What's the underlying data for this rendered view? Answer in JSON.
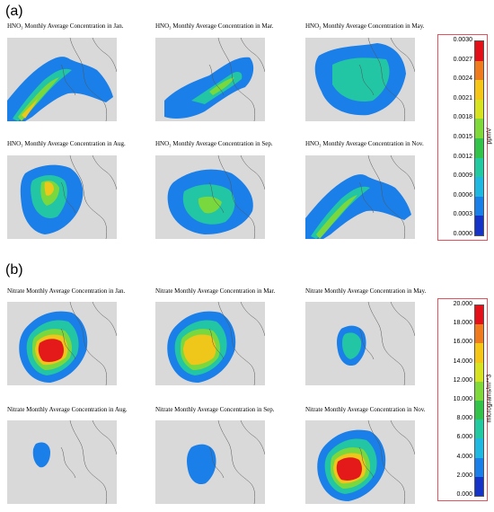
{
  "panels": [
    {
      "letter": "(a)",
      "maps": [
        {
          "title": "HNO₃ Monthly Average Concentration in Jan.",
          "hotspot": "coast-sw-band",
          "intensity": 0.85
        },
        {
          "title": "HNO₃ Monthly Average Concentration in Mar.",
          "hotspot": "band-east",
          "intensity": 0.55
        },
        {
          "title": "HNO₃ Monthly Average Concentration in May.",
          "hotspot": "broad-north",
          "intensity": 0.45
        },
        {
          "title": "HNO₃ Monthly Average Concentration in Aug.",
          "hotspot": "north-core",
          "intensity": 0.7
        },
        {
          "title": "HNO₃ Monthly Average Concentration in Sep.",
          "hotspot": "broad-center",
          "intensity": 0.5
        },
        {
          "title": "HNO₃ Monthly Average Concentration in Nov.",
          "hotspot": "coast-sw-band",
          "intensity": 0.6
        }
      ],
      "colorbar": {
        "unit": "ppmV",
        "ticks": [
          "0.0030",
          "0.0027",
          "0.0024",
          "0.0021",
          "0.0018",
          "0.0015",
          "0.0012",
          "0.0009",
          "0.0006",
          "0.0003",
          "0.0000"
        ],
        "colors": [
          "#e3101a",
          "#f07a1e",
          "#f5c518",
          "#d7e320",
          "#7fd93a",
          "#33c24a",
          "#23c9a0",
          "#20b8e0",
          "#1a7fe8",
          "#1633c8",
          "#dcdcdc"
        ]
      }
    },
    {
      "letter": "(b)",
      "maps": [
        {
          "title": "Nitrate Monthly Average Concentration in Jan.",
          "hotspot": "big-core",
          "intensity": 1.0
        },
        {
          "title": "Nitrate Monthly Average Concentration in Mar.",
          "hotspot": "big-core",
          "intensity": 0.85
        },
        {
          "title": "Nitrate Monthly Average Concentration in May.",
          "hotspot": "small-blob",
          "intensity": 0.3
        },
        {
          "title": "Nitrate Monthly Average Concentration in Aug.",
          "hotspot": "tiny-blob",
          "intensity": 0.2
        },
        {
          "title": "Nitrate Monthly Average Concentration in Sep.",
          "hotspot": "small-blob",
          "intensity": 0.25
        },
        {
          "title": "Nitrate Monthly Average Concentration in Nov.",
          "hotspot": "big-core",
          "intensity": 0.95
        }
      ],
      "colorbar": {
        "unit": "micrograms/m**3",
        "ticks": [
          "20.000",
          "18.000",
          "16.000",
          "14.000",
          "12.000",
          "10.000",
          "8.000",
          "6.000",
          "4.000",
          "2.000",
          "0.000"
        ],
        "colors": [
          "#e3101a",
          "#f07a1e",
          "#f5c518",
          "#d7e320",
          "#7fd93a",
          "#33c24a",
          "#23c9a0",
          "#20b8e0",
          "#1a7fe8",
          "#1633c8",
          "#dcdcdc"
        ]
      }
    }
  ]
}
